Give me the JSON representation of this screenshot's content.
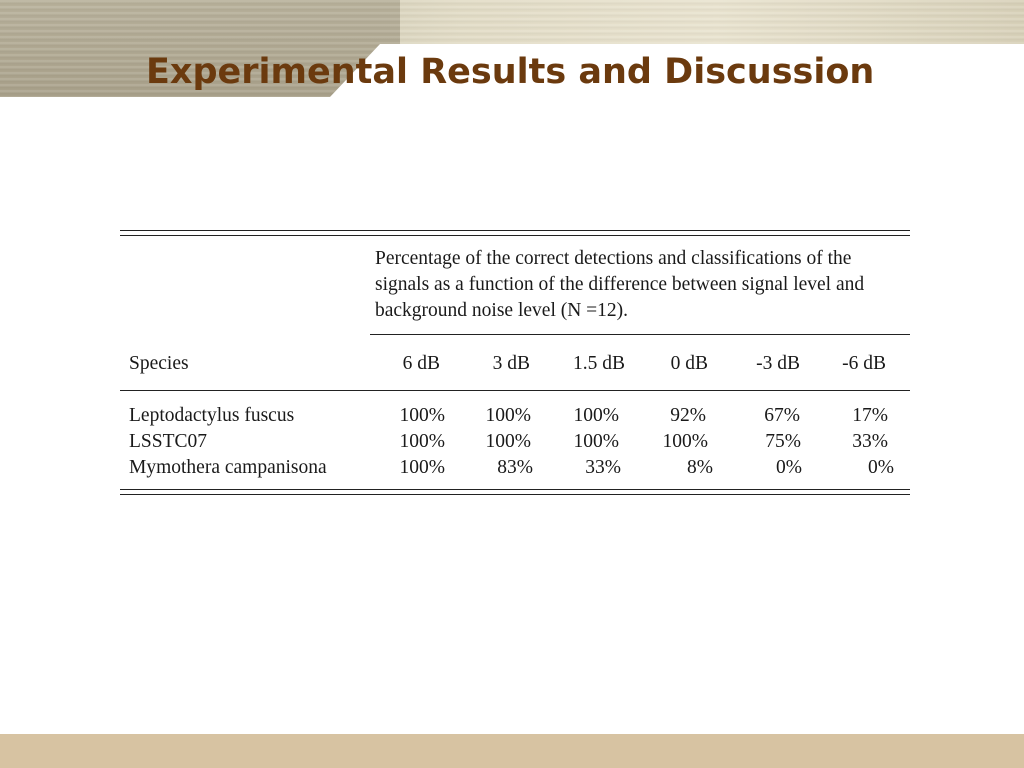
{
  "slide": {
    "title": "Experimental Results and Discussion"
  },
  "table": {
    "caption": "Percentage of the correct detections and classifications of the signals as a function of the difference between signal level and background noise level (N =12).",
    "row_header": "Species",
    "columns": [
      "6 dB",
      "3 dB",
      "1.5 dB",
      "0 dB",
      "-3 dB",
      "-6 dB"
    ],
    "rows": [
      {
        "species": "Leptodactylus fuscus",
        "values": [
          "100%",
          "100%",
          "100%",
          "92%",
          "67%",
          "17%"
        ]
      },
      {
        "species": "LSSTC07",
        "values": [
          "100%",
          "100%",
          "100%",
          "100%",
          "75%",
          "33%"
        ]
      },
      {
        "species": "Mymothera campanisona",
        "values": [
          "100%",
          "83%",
          "33%",
          "8%",
          "0%",
          "0%"
        ]
      }
    ]
  },
  "colors": {
    "title": "#6b3a0e",
    "footer_band": "#d7c3a2"
  }
}
